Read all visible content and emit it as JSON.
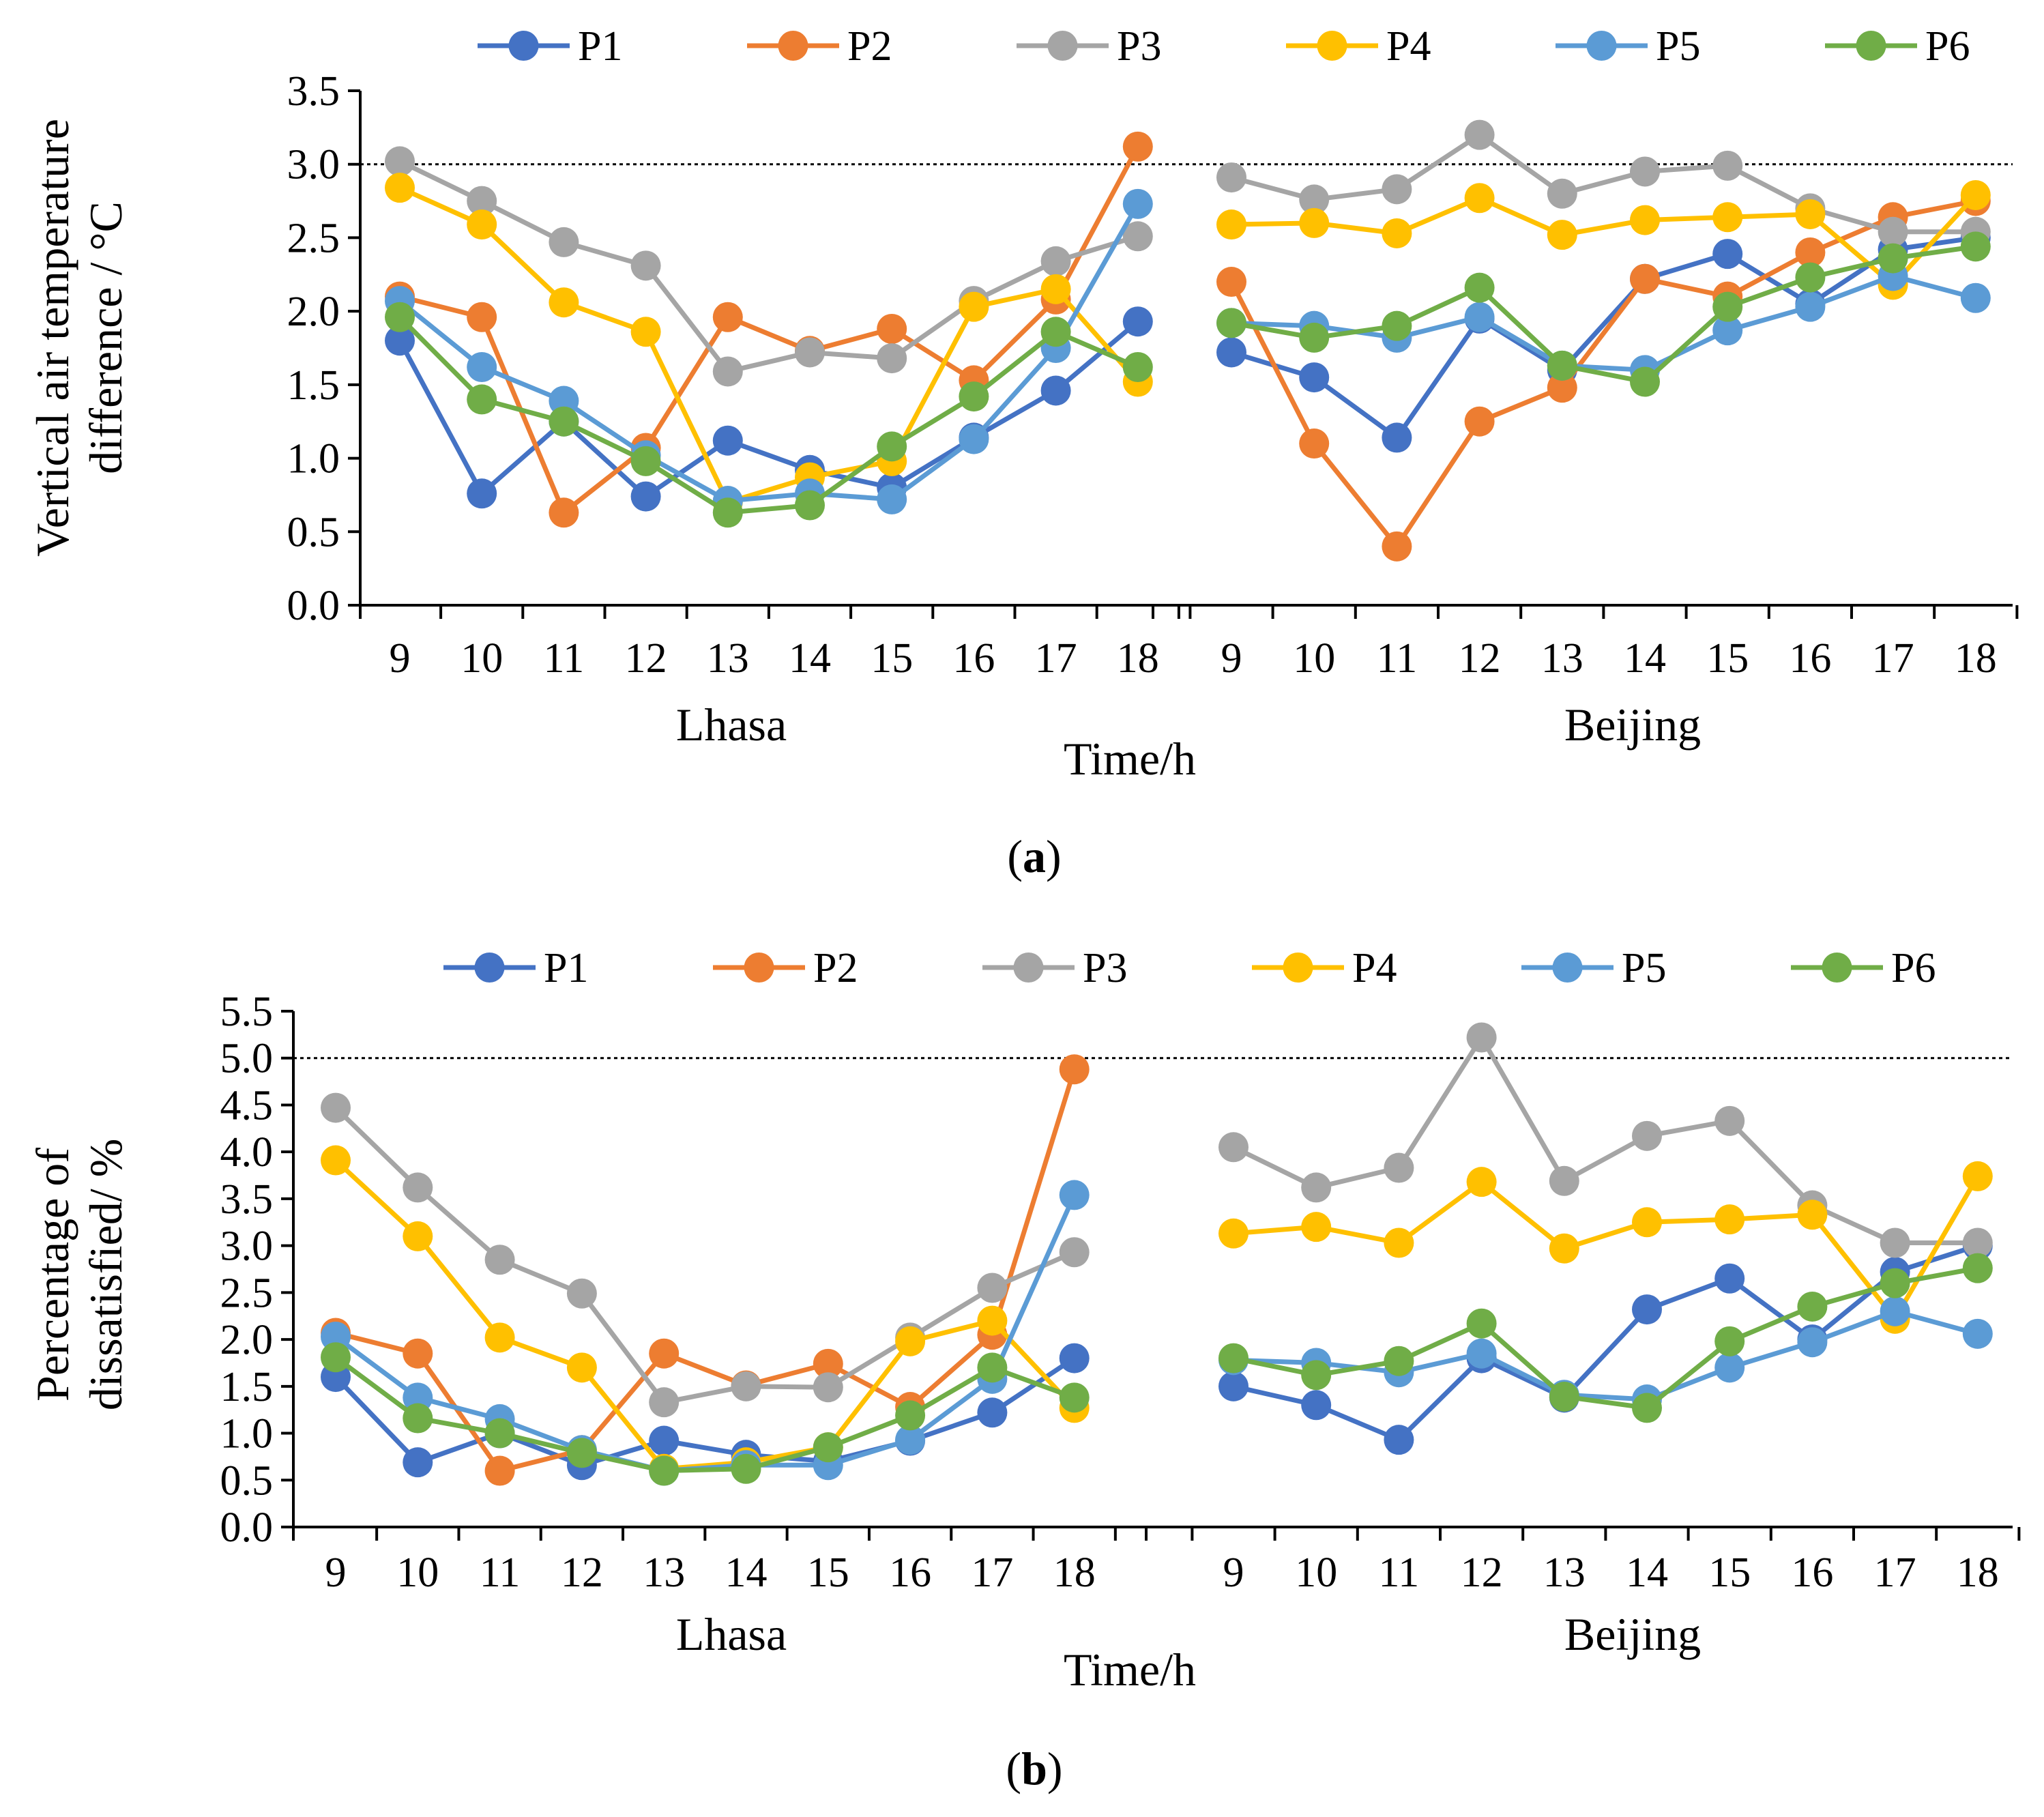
{
  "series_colors": {
    "P1": "#4472C4",
    "P2": "#ED7D31",
    "P3": "#A5A5A5",
    "P4": "#FFC000",
    "P5": "#5B9BD5",
    "P6": "#70AD47"
  },
  "chart_data": [
    {
      "id": "a",
      "type": "line",
      "panel_label": "a",
      "xlabel": "Time/h",
      "ylabel_lines": [
        "Vertical air temperature",
        "difference / °C"
      ],
      "groups": [
        "Lhasa",
        "Beijing"
      ],
      "categories": [
        "9",
        "10",
        "11",
        "12",
        "13",
        "14",
        "15",
        "16",
        "17",
        "18"
      ],
      "ylim": [
        0,
        3.5
      ],
      "yticks": [
        "0.0",
        "0.5",
        "1.0",
        "1.5",
        "2.0",
        "2.5",
        "3.0",
        "3.5"
      ],
      "reference_line": 3.0,
      "legend_position": "top",
      "series": [
        {
          "name": "P1",
          "lhasa": [
            1.8,
            0.76,
            1.25,
            0.74,
            1.12,
            0.92,
            0.8,
            1.14,
            1.46,
            1.93
          ],
          "beijing": [
            1.72,
            1.55,
            1.14,
            1.95,
            1.6,
            2.22,
            2.39,
            2.05,
            2.42,
            2.5
          ]
        },
        {
          "name": "P2",
          "lhasa": [
            2.1,
            1.96,
            0.63,
            1.07,
            1.96,
            1.73,
            1.88,
            1.53,
            2.08,
            3.12
          ],
          "beijing": [
            2.2,
            1.1,
            0.4,
            1.25,
            1.48,
            2.22,
            2.1,
            2.4,
            2.64,
            2.75
          ]
        },
        {
          "name": "P3",
          "lhasa": [
            3.02,
            2.75,
            2.47,
            2.31,
            1.59,
            1.72,
            1.68,
            2.07,
            2.34,
            2.51
          ],
          "beijing": [
            2.91,
            2.76,
            2.83,
            3.2,
            2.8,
            2.95,
            2.99,
            2.7,
            2.54,
            2.54
          ]
        },
        {
          "name": "P4",
          "lhasa": [
            2.84,
            2.59,
            2.06,
            1.86,
            0.7,
            0.87,
            0.98,
            2.03,
            2.15,
            1.52
          ],
          "beijing": [
            2.59,
            2.6,
            2.53,
            2.77,
            2.52,
            2.62,
            2.64,
            2.66,
            2.18,
            2.79
          ]
        },
        {
          "name": "P5",
          "lhasa": [
            2.07,
            1.62,
            1.39,
            1.02,
            0.71,
            0.76,
            0.72,
            1.13,
            1.75,
            2.73
          ],
          "beijing": [
            1.92,
            1.9,
            1.82,
            1.96,
            1.63,
            1.6,
            1.87,
            2.03,
            2.24,
            2.09
          ]
        },
        {
          "name": "P6",
          "lhasa": [
            1.96,
            1.4,
            1.25,
            0.98,
            0.63,
            0.68,
            1.08,
            1.42,
            1.86,
            1.62
          ],
          "beijing": [
            1.92,
            1.82,
            1.9,
            2.16,
            1.63,
            1.52,
            2.03,
            2.23,
            2.36,
            2.44
          ]
        }
      ]
    },
    {
      "id": "b",
      "type": "line",
      "panel_label": "b",
      "xlabel": "Time/h",
      "ylabel_lines": [
        "Percentage of",
        "dissatisfied/ %"
      ],
      "groups": [
        "Lhasa",
        "Beijing"
      ],
      "categories": [
        "9",
        "10",
        "11",
        "12",
        "13",
        "14",
        "15",
        "16",
        "17",
        "18"
      ],
      "ylim": [
        0,
        5.5
      ],
      "yticks": [
        "0.0",
        "0.5",
        "1.0",
        "1.5",
        "2.0",
        "2.5",
        "3.0",
        "3.5",
        "4.0",
        "4.5",
        "5.0",
        "5.5"
      ],
      "reference_line": 5.0,
      "legend_position": "top",
      "series": [
        {
          "name": "P1",
          "lhasa": [
            1.6,
            0.69,
            1.0,
            0.66,
            0.92,
            0.77,
            0.7,
            0.92,
            1.22,
            1.8
          ],
          "beijing": [
            1.5,
            1.3,
            0.93,
            1.8,
            1.38,
            2.32,
            2.65,
            2.0,
            2.72,
            3.0
          ]
        },
        {
          "name": "P2",
          "lhasa": [
            2.07,
            1.85,
            0.6,
            0.82,
            1.85,
            1.51,
            1.74,
            1.28,
            2.05,
            4.88
          ]
        },
        {
          "name": "P3",
          "lhasa": [
            4.47,
            3.62,
            2.85,
            2.49,
            1.33,
            1.5,
            1.49,
            2.02,
            2.55,
            2.93
          ],
          "beijing": [
            4.05,
            3.62,
            3.83,
            5.22,
            3.69,
            4.17,
            4.33,
            3.43,
            3.03,
            3.03
          ]
        },
        {
          "name": "P4",
          "lhasa": [
            3.91,
            3.1,
            2.02,
            1.7,
            0.62,
            0.69,
            0.85,
            1.98,
            2.2,
            1.27
          ],
          "beijing": [
            3.13,
            3.2,
            3.03,
            3.68,
            2.97,
            3.25,
            3.28,
            3.33,
            2.22,
            3.74
          ]
        },
        {
          "name": "P5",
          "lhasa": [
            2.03,
            1.38,
            1.15,
            0.82,
            0.6,
            0.66,
            0.66,
            0.93,
            1.58,
            3.54
          ],
          "beijing": [
            1.78,
            1.75,
            1.65,
            1.85,
            1.41,
            1.36,
            1.7,
            1.97,
            2.3,
            2.06
          ]
        },
        {
          "name": "P6",
          "lhasa": [
            1.81,
            1.16,
            1.0,
            0.79,
            0.6,
            0.62,
            0.85,
            1.19,
            1.7,
            1.38
          ],
          "beijing": [
            1.8,
            1.62,
            1.77,
            2.17,
            1.39,
            1.27,
            1.98,
            2.35,
            2.6,
            2.76
          ]
        }
      ]
    }
  ]
}
